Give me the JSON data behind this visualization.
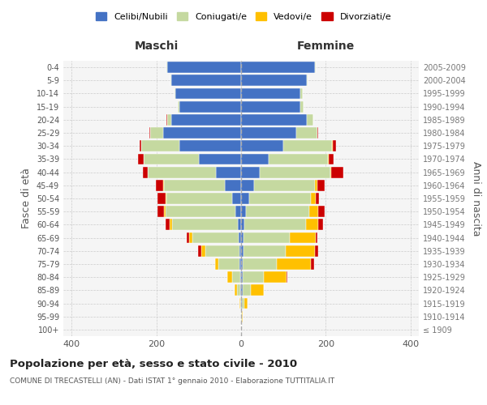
{
  "age_groups": [
    "100+",
    "95-99",
    "90-94",
    "85-89",
    "80-84",
    "75-79",
    "70-74",
    "65-69",
    "60-64",
    "55-59",
    "50-54",
    "45-49",
    "40-44",
    "35-39",
    "30-34",
    "25-29",
    "20-24",
    "15-19",
    "10-14",
    "5-9",
    "0-4"
  ],
  "birth_years": [
    "≤ 1909",
    "1910-1914",
    "1915-1919",
    "1920-1924",
    "1925-1929",
    "1930-1934",
    "1935-1939",
    "1940-1944",
    "1945-1949",
    "1950-1954",
    "1955-1959",
    "1960-1964",
    "1965-1969",
    "1970-1974",
    "1975-1979",
    "1980-1984",
    "1985-1989",
    "1990-1994",
    "1995-1999",
    "2000-2004",
    "2005-2009"
  ],
  "maschi": {
    "celibi": [
      0,
      0,
      0,
      2,
      2,
      3,
      4,
      5,
      8,
      14,
      22,
      38,
      60,
      100,
      145,
      185,
      165,
      145,
      155,
      165,
      175
    ],
    "coniugati": [
      0,
      0,
      2,
      8,
      20,
      50,
      80,
      110,
      155,
      165,
      155,
      145,
      160,
      130,
      90,
      30,
      10,
      5,
      3,
      2,
      2
    ],
    "vedovi": [
      0,
      0,
      1,
      5,
      10,
      8,
      10,
      8,
      5,
      3,
      2,
      1,
      1,
      1,
      0,
      0,
      0,
      0,
      0,
      0,
      0
    ],
    "divorziati": [
      0,
      0,
      0,
      0,
      1,
      1,
      8,
      6,
      10,
      15,
      18,
      18,
      12,
      12,
      5,
      2,
      1,
      0,
      0,
      0,
      0
    ]
  },
  "femmine": {
    "nubili": [
      0,
      0,
      2,
      3,
      3,
      4,
      5,
      6,
      8,
      12,
      20,
      30,
      45,
      65,
      100,
      130,
      155,
      140,
      140,
      155,
      175
    ],
    "coniugate": [
      0,
      2,
      5,
      20,
      50,
      80,
      100,
      110,
      145,
      150,
      145,
      145,
      165,
      140,
      115,
      50,
      15,
      8,
      5,
      2,
      2
    ],
    "vedove": [
      0,
      2,
      8,
      30,
      55,
      80,
      70,
      60,
      30,
      20,
      12,
      5,
      3,
      2,
      2,
      0,
      0,
      0,
      0,
      0,
      0
    ],
    "divorziate": [
      0,
      0,
      0,
      1,
      2,
      8,
      8,
      5,
      10,
      15,
      8,
      18,
      28,
      12,
      8,
      2,
      1,
      0,
      0,
      0,
      0
    ]
  },
  "colors": {
    "celibi": "#4472c4",
    "coniugati": "#c5d9a0",
    "vedovi": "#ffc000",
    "divorziati": "#cc0000"
  },
  "xlim": 420,
  "title": "Popolazione per età, sesso e stato civile - 2010",
  "subtitle": "COMUNE DI TRECASTELLI (AN) - Dati ISTAT 1° gennaio 2010 - Elaborazione TUTTITALIA.IT",
  "ylabel_left": "Fasce di età",
  "ylabel_right": "Anni di nascita",
  "maschi_label": "Maschi",
  "femmine_label": "Femmine",
  "legend_labels": [
    "Celibi/Nubili",
    "Coniugati/e",
    "Vedovi/e",
    "Divorziati/e"
  ],
  "bg_color": "#f5f5f5",
  "fig_bg": "#ffffff"
}
